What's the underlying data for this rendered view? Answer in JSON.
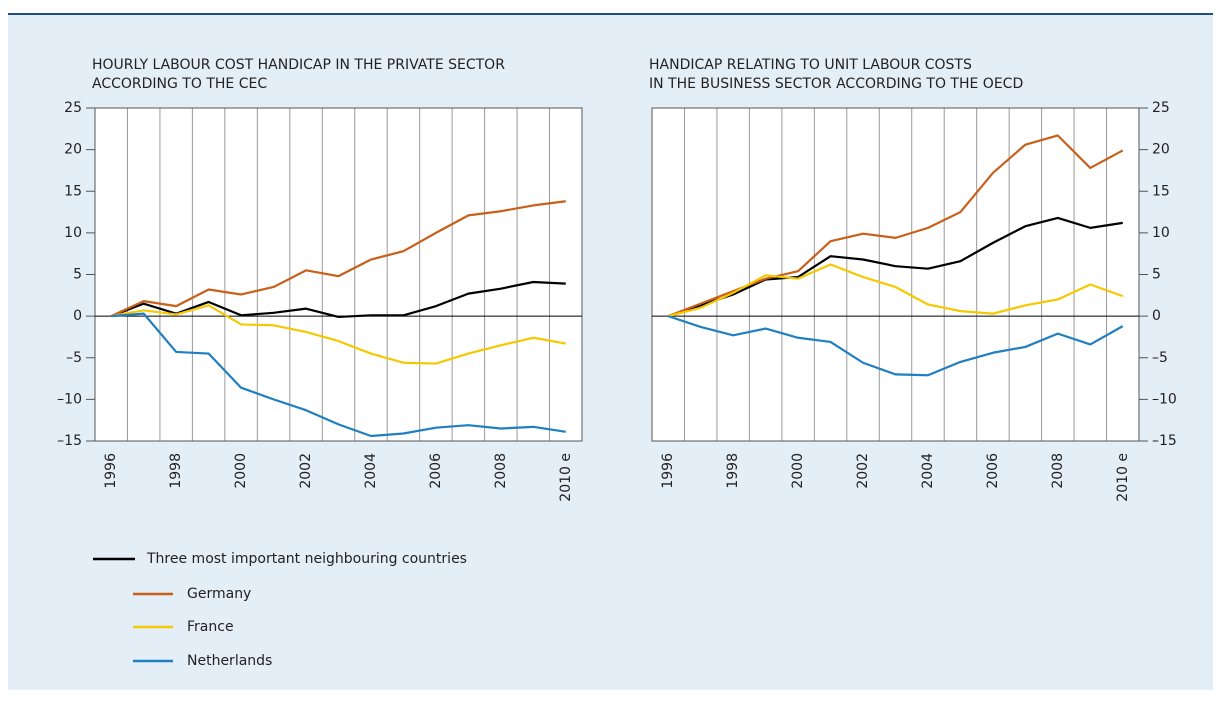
{
  "chart_data": [
    {
      "type": "line",
      "title": [
        "HOURLY LABOUR COST HANDICAP IN THE PRIVATE SECTOR",
        "ACCORDING TO THE CEC"
      ],
      "categories": [
        "1996",
        null,
        "1998",
        null,
        "2000",
        null,
        "2002",
        null,
        "2004",
        null,
        "2006",
        null,
        "2008",
        null,
        "2010 e"
      ],
      "ylim": [
        -15,
        25
      ],
      "yticks": [
        {
          "value": -15,
          "label": "–15"
        },
        {
          "value": -10,
          "label": "–10"
        },
        {
          "value": -5,
          "label": "–5"
        },
        0,
        5,
        10,
        15,
        20,
        25
      ],
      "yaxis_side": "left",
      "grid": true,
      "series": [
        {
          "name": "Three most important neighbouring countries",
          "color": "#000000",
          "values": [
            0,
            1.5,
            0.3,
            1.7,
            0.1,
            0.4,
            0.9,
            -0.1,
            0.1,
            0.1,
            1.2,
            2.7,
            3.3,
            4.1,
            3.9
          ]
        },
        {
          "name": "Germany",
          "color": "#c8601a",
          "values": [
            0,
            1.8,
            1.2,
            3.2,
            2.6,
            3.5,
            5.5,
            4.8,
            6.8,
            7.8,
            10,
            12.1,
            12.6,
            13.3,
            13.8
          ]
        },
        {
          "name": "France",
          "color": "#f5c800",
          "values": [
            0,
            0.7,
            0.2,
            1.3,
            -1,
            -1.1,
            -1.9,
            -3,
            -4.5,
            -5.6,
            -5.7,
            -4.5,
            -3.5,
            -2.6,
            -3.3
          ]
        },
        {
          "name": "Netherlands",
          "color": "#1f7fc0",
          "values": [
            0,
            0.3,
            -4.3,
            -4.5,
            -8.6,
            -10,
            -11.3,
            -13,
            -14.4,
            -14.1,
            -13.4,
            -13.1,
            -13.5,
            -13.3,
            -13.9
          ]
        }
      ]
    },
    {
      "type": "line",
      "title": [
        "HANDICAP RELATING TO UNIT LABOUR COSTS",
        "IN THE BUSINESS SECTOR ACCORDING TO THE OECD"
      ],
      "categories": [
        "1996",
        null,
        "1998",
        null,
        "2000",
        null,
        "2002",
        null,
        "2004",
        null,
        "2006",
        null,
        "2008",
        null,
        "2010 e"
      ],
      "ylim": [
        -15,
        25
      ],
      "yticks": [
        {
          "value": -15,
          "label": "–15"
        },
        {
          "value": -10,
          "label": "–10"
        },
        {
          "value": -5,
          "label": "–5"
        },
        0,
        5,
        10,
        15,
        20,
        25
      ],
      "yaxis_side": "right",
      "grid": true,
      "series": [
        {
          "color": "#000000",
          "values": [
            0,
            1.3,
            2.6,
            4.4,
            4.7,
            7.2,
            6.8,
            6.0,
            5.7,
            6.6,
            8.8,
            10.8,
            11.8,
            10.6,
            11.2
          ]
        },
        {
          "color": "#c8601a",
          "values": [
            0,
            1.5,
            3.0,
            4.5,
            5.4,
            9.0,
            9.9,
            9.4,
            10.6,
            12.5,
            17.2,
            20.6,
            21.7,
            17.8,
            19.9
          ]
        },
        {
          "color": "#f5c800",
          "values": [
            0,
            1.0,
            2.8,
            4.9,
            4.5,
            6.2,
            4.7,
            3.5,
            1.4,
            0.6,
            0.3,
            1.3,
            2.0,
            3.8,
            2.4
          ]
        },
        {
          "color": "#1f7fc0",
          "values": [
            0,
            -1.3,
            -2.3,
            -1.5,
            -2.6,
            -3.1,
            -5.6,
            -7,
            -7.1,
            -5.5,
            -4.4,
            -3.7,
            -2.1,
            -3.4,
            -1.2
          ]
        }
      ]
    }
  ]
}
